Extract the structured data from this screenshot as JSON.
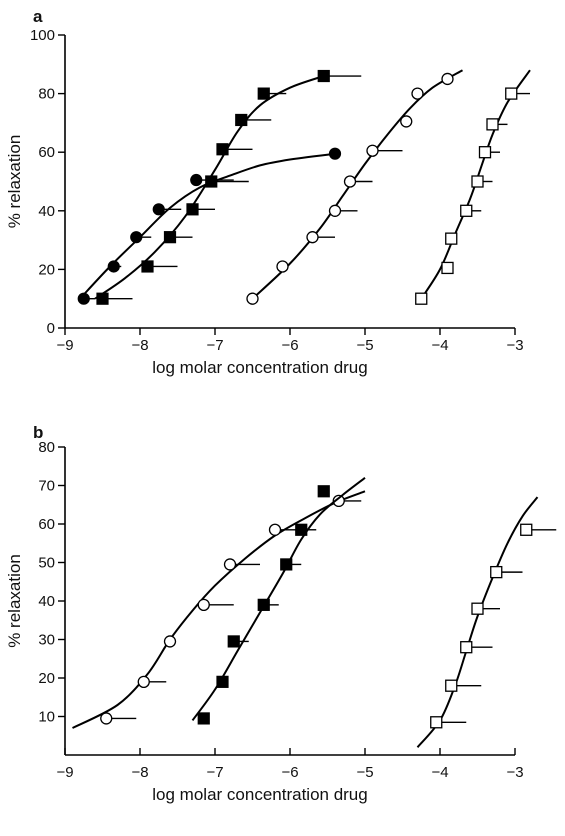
{
  "chart_data": [
    {
      "panel": "a",
      "type": "scatter",
      "xlabel": "log molar concentration drug",
      "ylabel": "% relaxation",
      "xlim": [
        -9,
        -3
      ],
      "ylim": [
        0,
        100
      ],
      "xticks": [
        -9,
        -8,
        -7,
        -6,
        -5,
        -4,
        -3
      ],
      "xtick_labels": [
        "−9",
        "−8",
        "−7",
        "−6",
        "−5",
        "−4",
        "−3"
      ],
      "yticks": [
        0,
        20,
        40,
        60,
        80,
        100
      ],
      "ytick_labels": [
        "0",
        "20",
        "40",
        "60",
        "80",
        "100"
      ],
      "series": [
        {
          "marker": "filled-circle",
          "points": [
            {
              "x": -8.75,
              "y": 10,
              "err": 0.15
            },
            {
              "x": -8.35,
              "y": 21,
              "err": 0.1
            },
            {
              "x": -8.05,
              "y": 31,
              "err": 0.2
            },
            {
              "x": -7.75,
              "y": 40.5,
              "err": 0.3
            },
            {
              "x": -7.25,
              "y": 50.5,
              "err": 0.5
            },
            {
              "x": -5.4,
              "y": 59.5,
              "err": 0.0
            }
          ],
          "curve": [
            [
              -8.8,
              10
            ],
            [
              -8.4,
              21
            ],
            [
              -8.0,
              31
            ],
            [
              -7.6,
              41
            ],
            [
              -7.2,
              48
            ],
            [
              -6.8,
              52
            ],
            [
              -6.4,
              55.5
            ],
            [
              -6.0,
              57.5
            ],
            [
              -5.4,
              59.5
            ]
          ]
        },
        {
          "marker": "filled-square",
          "points": [
            {
              "x": -8.5,
              "y": 10,
              "err": 0.4
            },
            {
              "x": -7.9,
              "y": 21,
              "err": 0.4
            },
            {
              "x": -7.6,
              "y": 31,
              "err": 0.3
            },
            {
              "x": -7.3,
              "y": 40.5,
              "err": 0.3
            },
            {
              "x": -7.05,
              "y": 50,
              "err": 0.5
            },
            {
              "x": -6.9,
              "y": 61,
              "err": 0.4
            },
            {
              "x": -6.65,
              "y": 71,
              "err": 0.4
            },
            {
              "x": -6.35,
              "y": 80,
              "err": 0.3
            },
            {
              "x": -5.55,
              "y": 86,
              "err": 0.5
            }
          ],
          "curve": [
            [
              -8.6,
              10
            ],
            [
              -8.2,
              17
            ],
            [
              -7.8,
              26
            ],
            [
              -7.4,
              38
            ],
            [
              -7.0,
              54
            ],
            [
              -6.7,
              67
            ],
            [
              -6.4,
              76
            ],
            [
              -6.0,
              82
            ],
            [
              -5.55,
              86
            ]
          ]
        },
        {
          "marker": "open-circle",
          "points": [
            {
              "x": -6.5,
              "y": 10,
              "err": 0.0
            },
            {
              "x": -6.1,
              "y": 21,
              "err": 0.0
            },
            {
              "x": -5.7,
              "y": 31,
              "err": 0.3
            },
            {
              "x": -5.4,
              "y": 40,
              "err": 0.3
            },
            {
              "x": -5.2,
              "y": 50,
              "err": 0.3
            },
            {
              "x": -4.9,
              "y": 60.5,
              "err": 0.4
            },
            {
              "x": -4.45,
              "y": 70.5,
              "err": 0.0
            },
            {
              "x": -4.3,
              "y": 80,
              "err": 0.0
            },
            {
              "x": -3.9,
              "y": 85,
              "err": 0.0
            }
          ],
          "curve": [
            [
              -6.5,
              10
            ],
            [
              -6.0,
              22
            ],
            [
              -5.6,
              34
            ],
            [
              -5.3,
              45
            ],
            [
              -5.0,
              56
            ],
            [
              -4.7,
              66
            ],
            [
              -4.4,
              75
            ],
            [
              -4.1,
              82
            ],
            [
              -3.7,
              88
            ]
          ]
        },
        {
          "marker": "open-square",
          "points": [
            {
              "x": -4.25,
              "y": 10,
              "err": 0.0
            },
            {
              "x": -3.9,
              "y": 20.5,
              "err": 0.0
            },
            {
              "x": -3.85,
              "y": 30.5,
              "err": 0.0
            },
            {
              "x": -3.65,
              "y": 40,
              "err": 0.2
            },
            {
              "x": -3.5,
              "y": 50,
              "err": 0.2
            },
            {
              "x": -3.4,
              "y": 60,
              "err": 0.2
            },
            {
              "x": -3.3,
              "y": 69.5,
              "err": 0.2
            },
            {
              "x": -3.05,
              "y": 80,
              "err": 0.25
            }
          ],
          "curve": [
            [
              -4.25,
              10
            ],
            [
              -4.0,
              20
            ],
            [
              -3.8,
              32
            ],
            [
              -3.6,
              44
            ],
            [
              -3.45,
              55
            ],
            [
              -3.3,
              66
            ],
            [
              -3.1,
              77
            ],
            [
              -2.8,
              88
            ]
          ]
        }
      ]
    },
    {
      "panel": "b",
      "type": "scatter",
      "xlabel": "log molar concentration drug",
      "ylabel": "% relaxation",
      "xlim": [
        -9,
        -3
      ],
      "ylim": [
        0,
        80
      ],
      "xticks": [
        -9,
        -8,
        -7,
        -6,
        -5,
        -4,
        -3
      ],
      "xtick_labels": [
        "−9",
        "−8",
        "−7",
        "−6",
        "−5",
        "−4",
        "−3"
      ],
      "yticks": [
        10,
        20,
        30,
        40,
        50,
        60,
        70,
        80
      ],
      "ytick_labels": [
        "10",
        "20",
        "30",
        "40",
        "50",
        "60",
        "70",
        "80"
      ],
      "series": [
        {
          "marker": "open-circle",
          "points": [
            {
              "x": -8.45,
              "y": 9.5,
              "err": 0.4
            },
            {
              "x": -7.95,
              "y": 19,
              "err": 0.3
            },
            {
              "x": -7.6,
              "y": 29.5,
              "err": 0.0
            },
            {
              "x": -7.15,
              "y": 39,
              "err": 0.4
            },
            {
              "x": -6.8,
              "y": 49.5,
              "err": 0.4
            },
            {
              "x": -6.2,
              "y": 58.5,
              "err": 0.4
            },
            {
              "x": -5.35,
              "y": 66,
              "err": 0.3
            }
          ],
          "curve": [
            [
              -8.9,
              7
            ],
            [
              -8.3,
              13
            ],
            [
              -7.9,
              21
            ],
            [
              -7.6,
              30
            ],
            [
              -7.3,
              37.5
            ],
            [
              -7.0,
              44
            ],
            [
              -6.6,
              51
            ],
            [
              -6.2,
              57
            ],
            [
              -5.8,
              61.5
            ],
            [
              -5.4,
              65.5
            ],
            [
              -5.0,
              68.5
            ]
          ]
        },
        {
          "marker": "filled-square",
          "points": [
            {
              "x": -7.15,
              "y": 9.5,
              "err": 0.0
            },
            {
              "x": -6.9,
              "y": 19,
              "err": 0.0
            },
            {
              "x": -6.75,
              "y": 29.5,
              "err": 0.2
            },
            {
              "x": -6.35,
              "y": 39,
              "err": 0.2
            },
            {
              "x": -6.05,
              "y": 49.5,
              "err": 0.2
            },
            {
              "x": -5.85,
              "y": 58.5,
              "err": 0.2
            },
            {
              "x": -5.55,
              "y": 68.5,
              "err": 0.0
            }
          ],
          "curve": [
            [
              -7.3,
              9
            ],
            [
              -7.0,
              17
            ],
            [
              -6.7,
              27
            ],
            [
              -6.4,
              37
            ],
            [
              -6.1,
              47
            ],
            [
              -5.85,
              56
            ],
            [
              -5.6,
              62.5
            ],
            [
              -5.3,
              67.5
            ],
            [
              -5.0,
              72
            ]
          ]
        },
        {
          "marker": "open-square",
          "points": [
            {
              "x": -4.05,
              "y": 8.5,
              "err": 0.4
            },
            {
              "x": -3.85,
              "y": 18,
              "err": 0.4
            },
            {
              "x": -3.65,
              "y": 28,
              "err": 0.35
            },
            {
              "x": -3.5,
              "y": 38,
              "err": 0.3
            },
            {
              "x": -3.25,
              "y": 47.5,
              "err": 0.35
            },
            {
              "x": -2.85,
              "y": 58.5,
              "err": 0.4
            }
          ],
          "curve": [
            [
              -4.3,
              2
            ],
            [
              -4.0,
              9
            ],
            [
              -3.8,
              18
            ],
            [
              -3.65,
              27
            ],
            [
              -3.5,
              36
            ],
            [
              -3.3,
              46
            ],
            [
              -3.1,
              55
            ],
            [
              -2.9,
              62
            ],
            [
              -2.7,
              67
            ]
          ]
        }
      ]
    }
  ]
}
